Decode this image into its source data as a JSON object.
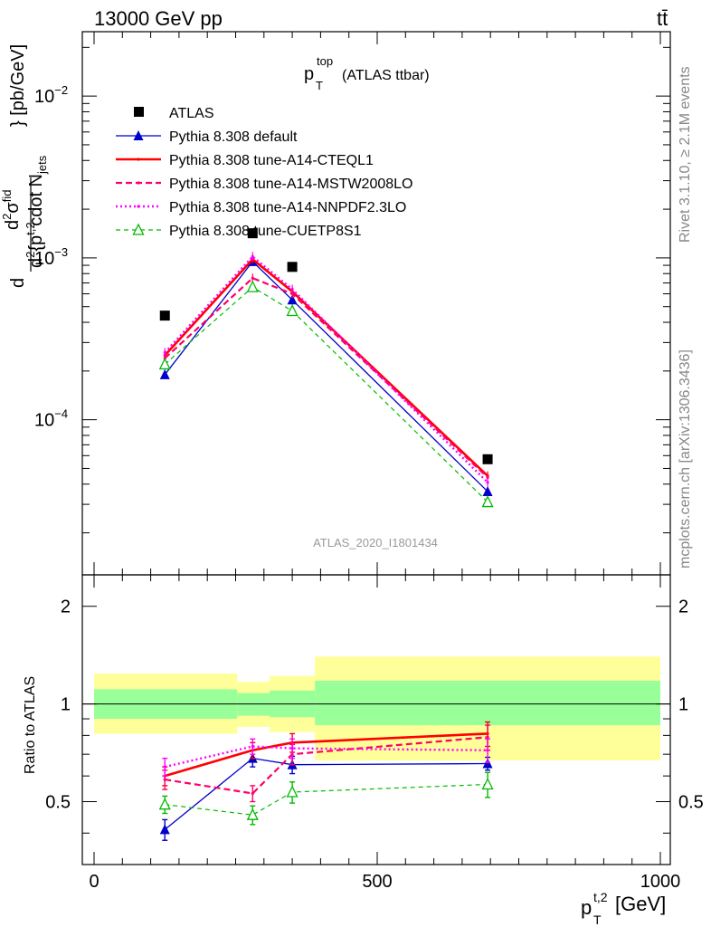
{
  "header": {
    "left_label": "13000 GeV pp",
    "right_label": "tt̄",
    "plot_title_main": "p",
    "plot_title_sup": "top",
    "plot_title_sub": "T",
    "plot_title_suffix": "(ATLAS ttbar)",
    "analysis_id": "ATLAS_2020_I1801434",
    "side_text_top": "Rivet 3.1.10, ≥ 2.1M events",
    "side_text_bottom": "mcplots.cern.ch [arXiv:1306.3436]"
  },
  "axes": {
    "xlabel_main": "p",
    "xlabel_sup": "t,2",
    "xlabel_sub": "T",
    "xlabel_unit": "[GeV]",
    "ylabel_top": "d²σ^fid / d²{p_T^t,2 cdot N_jets} [pb/GeV]",
    "ylabel_bottom": "Ratio to ATLAS",
    "x_ticks": [
      "0",
      "500",
      "1000"
    ],
    "y_ticks_top": [
      {
        "base": "10",
        "exp": "−2"
      },
      {
        "base": "10",
        "exp": "−3"
      },
      {
        "base": "10",
        "exp": "−4"
      }
    ],
    "y_ticks_bottom": [
      "0.5",
      "1",
      "2"
    ]
  },
  "colors": {
    "atlas": "#000000",
    "default": "#0000cc",
    "cteql1": "#ff0000",
    "mstw": "#ff0066",
    "nnpdf": "#ff00ff",
    "cuetp": "#00bb00",
    "band_outer": "#ffff99",
    "band_inner": "#99ff99"
  },
  "chart_data": {
    "type": "line",
    "x_scale": "linear",
    "xlim": [
      0,
      1000
    ],
    "top_panel": {
      "y_scale": "log",
      "ylim": [
        1.1e-05,
        0.025
      ],
      "series": [
        {
          "name": "ATLAS",
          "style": "marker-square",
          "x": [
            125,
            280,
            350,
            695
          ],
          "y": [
            0.00044,
            0.00142,
            0.00088,
            5.7e-05
          ]
        },
        {
          "name": "Pythia 8.308 default",
          "style": "solid-triangle",
          "x": [
            125,
            280,
            350,
            695
          ],
          "y": [
            0.00019,
            0.00095,
            0.00055,
            3.6e-05
          ]
        },
        {
          "name": "Pythia 8.308 tune-A14-CTEQL1",
          "style": "solid-thick",
          "x": [
            125,
            280,
            350,
            695
          ],
          "y": [
            0.00025,
            0.00098,
            0.00062,
            4.5e-05
          ]
        },
        {
          "name": "Pythia 8.308 tune-A14-MSTW2008LO",
          "style": "dashed",
          "x": [
            125,
            280,
            350,
            695
          ],
          "y": [
            0.00024,
            0.00075,
            0.0006,
            4.4e-05
          ]
        },
        {
          "name": "Pythia 8.308 tune-A14-NNPDF2.3LO",
          "style": "dotted",
          "x": [
            125,
            280,
            350,
            695
          ],
          "y": [
            0.00026,
            0.00102,
            0.00064,
            4.1e-05
          ]
        },
        {
          "name": "Pythia 8.308 tune-CUETP8S1",
          "style": "dashed-open-triangle",
          "x": [
            125,
            280,
            350,
            695
          ],
          "y": [
            0.00022,
            0.00066,
            0.00047,
            3.1e-05
          ]
        }
      ]
    },
    "ratio_panel": {
      "y_scale": "log",
      "ylim": [
        0.32,
        2.5
      ],
      "reference_line": 1,
      "bands": [
        {
          "x0": 0,
          "x1": 253,
          "inner": [
            0.9,
            1.11
          ],
          "outer": [
            0.81,
            1.24
          ]
        },
        {
          "x0": 253,
          "x1": 310,
          "inner": [
            0.92,
            1.08
          ],
          "outer": [
            0.85,
            1.17
          ]
        },
        {
          "x0": 310,
          "x1": 390,
          "inner": [
            0.91,
            1.1
          ],
          "outer": [
            0.82,
            1.22
          ]
        },
        {
          "x0": 390,
          "x1": 1000,
          "inner": [
            0.86,
            1.18
          ],
          "outer": [
            0.67,
            1.4
          ]
        }
      ],
      "series": [
        {
          "name": "Pythia 8.308 default",
          "x": [
            125,
            280,
            350,
            695
          ],
          "y": [
            0.41,
            0.68,
            0.65,
            0.655
          ],
          "err": [
            0.03,
            0.04,
            0.04,
            0.03
          ]
        },
        {
          "name": "Pythia 8.308 tune-A14-CTEQL1",
          "x": [
            125,
            280,
            350,
            695
          ],
          "y": [
            0.6,
            0.72,
            0.76,
            0.81
          ],
          "err": [
            0.04,
            0.04,
            0.05,
            0.07
          ]
        },
        {
          "name": "Pythia 8.308 tune-A14-MSTW2008LO",
          "x": [
            125,
            280,
            350,
            695
          ],
          "y": [
            0.585,
            0.53,
            0.7,
            0.79
          ],
          "err": [
            0.04,
            0.03,
            0.05,
            0.07
          ]
        },
        {
          "name": "Pythia 8.308 tune-A14-NNPDF2.3LO",
          "x": [
            125,
            280,
            350,
            695
          ],
          "y": [
            0.64,
            0.74,
            0.73,
            0.72
          ],
          "err": [
            0.04,
            0.04,
            0.05,
            0.06
          ]
        },
        {
          "name": "Pythia 8.308 tune-CUETP8S1",
          "x": [
            125,
            280,
            350,
            695
          ],
          "y": [
            0.49,
            0.455,
            0.535,
            0.565
          ],
          "err": [
            0.03,
            0.03,
            0.04,
            0.05
          ]
        }
      ]
    }
  }
}
